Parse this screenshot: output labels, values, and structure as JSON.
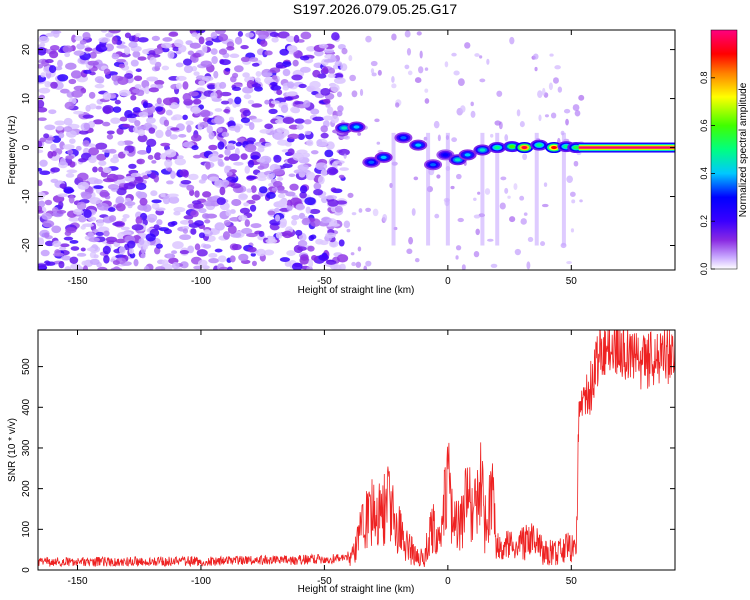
{
  "figure_title": "S197.2026.079.05.25.G17",
  "chart_data": [
    {
      "type": "heatmap",
      "title": "S197.2026.079.05.25.G17",
      "xlabel": "Height of straight line (km)",
      "ylabel": "Frequency (Hz)",
      "xlim": [
        -166,
        92
      ],
      "ylim": [
        -25,
        24
      ],
      "xticks": [
        -150,
        -100,
        -50,
        0,
        50
      ],
      "yticks": [
        -20,
        -10,
        0,
        10,
        20
      ],
      "colorbar": {
        "label": "Normalized spectral amplitude",
        "range": [
          0,
          1
        ],
        "ticks": [
          "0.0",
          "0.2",
          "0.4",
          "0.6",
          "0.8"
        ],
        "tick_values": [
          0.0,
          0.2,
          0.4,
          0.6,
          0.8
        ],
        "colors": [
          "#ffffff",
          "#c8a8ff",
          "#8a2be2",
          "#3a00ff",
          "#0000ff",
          "#00c8ff",
          "#00ff80",
          "#40ff00",
          "#ffff00",
          "#ff8000",
          "#ff0000",
          "#ff0080"
        ]
      },
      "noise_region_x": [
        -166,
        -45
      ],
      "track": [
        {
          "x": -42,
          "y": 4.0,
          "a": 0.45
        },
        {
          "x": -37,
          "y": 4.2,
          "a": 0.4
        },
        {
          "x": -31,
          "y": -3.0,
          "a": 0.35
        },
        {
          "x": -26,
          "y": -2.0,
          "a": 0.4
        },
        {
          "x": -18,
          "y": 2.0,
          "a": 0.35
        },
        {
          "x": -12,
          "y": 0.5,
          "a": 0.4
        },
        {
          "x": -6,
          "y": -3.5,
          "a": 0.35
        },
        {
          "x": -1,
          "y": -1.5,
          "a": 0.3
        },
        {
          "x": 4,
          "y": -2.5,
          "a": 0.45
        },
        {
          "x": 8,
          "y": -1.5,
          "a": 0.4
        },
        {
          "x": 14,
          "y": -0.5,
          "a": 0.45
        },
        {
          "x": 20,
          "y": 0.0,
          "a": 0.5
        },
        {
          "x": 26,
          "y": 0.2,
          "a": 0.6
        },
        {
          "x": 31,
          "y": 0.0,
          "a": 0.95
        },
        {
          "x": 37,
          "y": 0.5,
          "a": 0.5
        },
        {
          "x": 43,
          "y": 0.0,
          "a": 0.9
        },
        {
          "x": 48,
          "y": 0.2,
          "a": 0.5
        },
        {
          "x": 52,
          "y": 0.0,
          "a": 0.55
        }
      ],
      "steady_signal": {
        "x_start": 53,
        "x_end": 92,
        "y": 0.0,
        "a": 0.98
      }
    },
    {
      "type": "line",
      "xlabel": "Height of straight line (km)",
      "ylabel": "SNR (10 * v/v)",
      "xlim": [
        -166,
        92
      ],
      "ylim": [
        0,
        590
      ],
      "xticks": [
        -150,
        -100,
        -50,
        0,
        50
      ],
      "yticks": [
        0,
        100,
        200,
        300,
        400,
        500
      ],
      "series": [
        {
          "name": "SNR",
          "color": "#ee2222",
          "x": [
            -166,
            -150,
            -100,
            -60,
            -45,
            -38,
            -35,
            -30,
            -27,
            -24,
            -21,
            -18,
            -14,
            -10,
            -6,
            -3,
            0,
            2,
            5,
            8,
            10,
            13,
            15,
            18,
            20,
            22,
            25,
            28,
            30,
            35,
            40,
            45,
            50,
            52,
            53,
            55,
            58,
            62,
            70,
            78,
            86,
            92
          ],
          "values": [
            20,
            20,
            22,
            25,
            28,
            40,
            100,
            160,
            130,
            190,
            120,
            70,
            45,
            25,
            110,
            55,
            240,
            130,
            95,
            180,
            140,
            230,
            110,
            170,
            60,
            40,
            75,
            35,
            70,
            70,
            40,
            45,
            60,
            40,
            340,
            410,
            450,
            540,
            545,
            510,
            520,
            530
          ]
        }
      ]
    }
  ]
}
